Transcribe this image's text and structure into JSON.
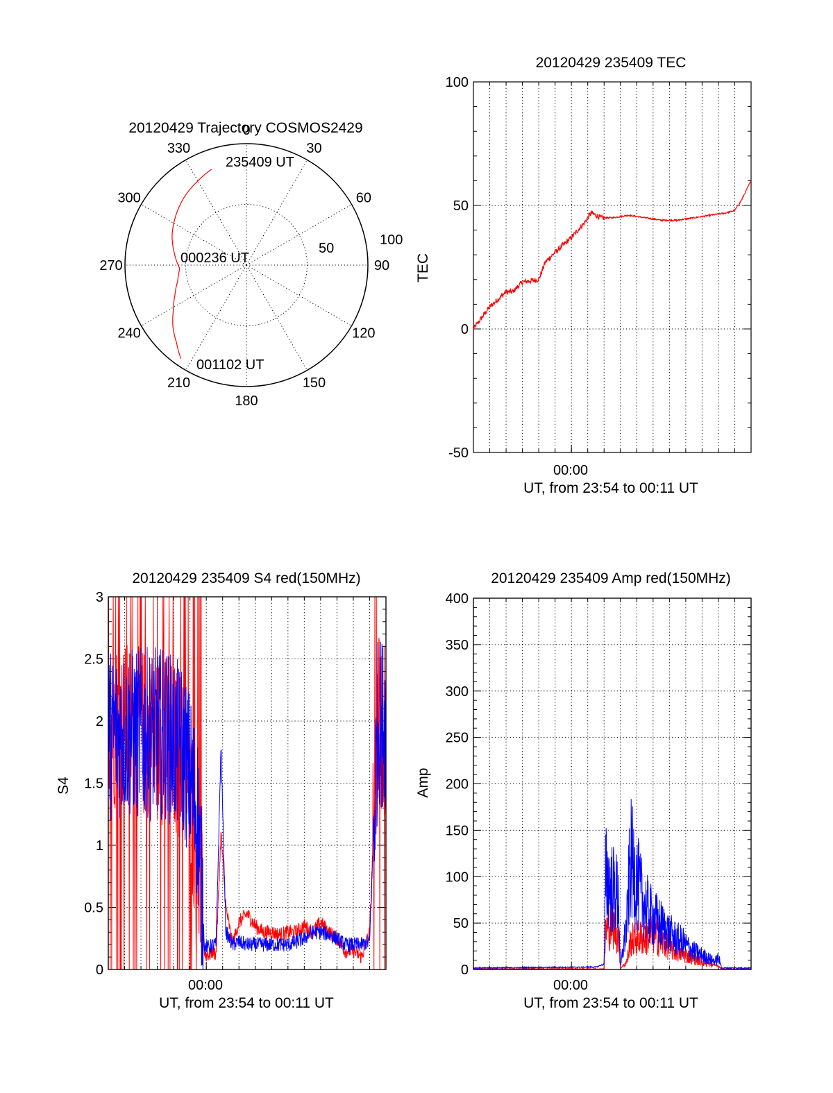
{
  "chart_data": [
    {
      "id": "trajectory",
      "type": "polar",
      "title": "20120429 Trajectory COSMOS2429",
      "azimuth_labels": [
        "0",
        "30",
        "60",
        "90",
        "120",
        "150",
        "180",
        "210",
        "240",
        "270",
        "300",
        "330"
      ],
      "radial_labels": [
        "50",
        "100"
      ],
      "elevation_max": 100,
      "series_color": "#ff0000",
      "start_label": "235409 UT",
      "mid_label": "000236 UT",
      "end_label": "001102 UT",
      "track": {
        "azimuth_deg": [
          340,
          330,
          318,
          305,
          292,
          279,
          267,
          257,
          247,
          238,
          230,
          222,
          215
        ],
        "radius": [
          84,
          80,
          76,
          71,
          66,
          60,
          55,
          58,
          64,
          71,
          79,
          86,
          94
        ]
      }
    },
    {
      "id": "tec",
      "type": "line",
      "title": "20120429 235409 TEC",
      "ylabel": "TEC",
      "xlabel": "UT, from 23:54 to 00:11 UT",
      "x_tick_label": "00:00",
      "x_range_minutes": [
        -6,
        11
      ],
      "ylim": [
        -50,
        100
      ],
      "yticks": [
        -50,
        0,
        50,
        100
      ],
      "series_color": "#ff0000",
      "series": {
        "x_minutes": [
          -6.0,
          -5.0,
          -4.0,
          -3.6,
          -3.0,
          -2.0,
          -1.6,
          -1.0,
          -0.5,
          0.0,
          0.8,
          1.2,
          1.8,
          2.5,
          3.5,
          4.5,
          5.5,
          6.5,
          7.5,
          8.5,
          9.5,
          10.0,
          10.4,
          11.0
        ],
        "tec": [
          0,
          9,
          15,
          15,
          19,
          20,
          27,
          31,
          34,
          37,
          43,
          47,
          45,
          45,
          46,
          45,
          44,
          44,
          45,
          46,
          47,
          48,
          52,
          60
        ]
      }
    },
    {
      "id": "s4",
      "type": "line",
      "title": "20120429 235409 S4 red(150MHz)",
      "ylabel": "S4",
      "xlabel": "UT, from 23:54 to 00:11 UT",
      "x_tick_label": "00:00",
      "x_range_minutes": [
        -6,
        11
      ],
      "ylim": [
        0,
        3
      ],
      "yticks": [
        "0",
        "0.5",
        "1",
        "1.5",
        "2",
        "2.5",
        "3"
      ],
      "series": [
        {
          "color": "#ff0000",
          "x_minutes": [
            -6.0,
            -4.0,
            -2.5,
            -1.4,
            -0.9,
            -0.5,
            -0.1,
            0.2,
            0.4,
            0.6,
            0.9,
            1.2,
            1.6,
            2.0,
            2.5,
            3.0,
            3.5,
            4.0,
            4.5,
            5.0,
            5.5,
            6.0,
            6.5,
            7.0,
            7.5,
            8.0,
            8.5,
            9.0,
            9.5,
            10.0,
            10.5,
            11.0
          ],
          "mean": [
            2.0,
            1.9,
            1.85,
            1.7,
            1.3,
            0.9,
            0.12,
            0.12,
            0.15,
            0.12,
            1.1,
            0.5,
            0.2,
            0.38,
            0.45,
            0.35,
            0.3,
            0.3,
            0.28,
            0.3,
            0.3,
            0.35,
            0.3,
            0.38,
            0.3,
            0.25,
            0.15,
            0.15,
            0.1,
            0.3,
            2.0,
            1.9
          ]
        },
        {
          "color": "#0000ff",
          "x_minutes": [
            -6.0,
            -4.0,
            -2.5,
            -1.4,
            -0.9,
            -0.5,
            -0.1,
            0.2,
            0.4,
            0.6,
            0.9,
            1.2,
            1.6,
            2.0,
            2.5,
            3.0,
            3.5,
            4.0,
            4.5,
            5.0,
            5.5,
            6.0,
            6.5,
            7.0,
            7.5,
            8.0,
            8.5,
            9.0,
            9.5,
            10.0,
            10.5,
            11.0
          ],
          "mean": [
            1.9,
            1.9,
            1.9,
            1.75,
            1.5,
            1.2,
            0.18,
            0.18,
            0.2,
            0.2,
            1.8,
            0.3,
            0.2,
            0.22,
            0.2,
            0.2,
            0.2,
            0.2,
            0.2,
            0.2,
            0.22,
            0.25,
            0.3,
            0.3,
            0.28,
            0.25,
            0.2,
            0.2,
            0.2,
            0.22,
            2.0,
            2.0
          ]
        }
      ]
    },
    {
      "id": "amp",
      "type": "line",
      "title": "20120429 235409 Amp red(150MHz)",
      "ylabel": "Amp",
      "xlabel": "UT, from 23:54 to 00:11 UT",
      "x_tick_label": "00:00",
      "x_range_minutes": [
        -6,
        11
      ],
      "ylim": [
        0,
        400
      ],
      "yticks": [
        0,
        50,
        100,
        150,
        200,
        250,
        300,
        350,
        400
      ],
      "series": [
        {
          "color": "#ff0000",
          "x_minutes": [
            -6.0,
            2.0,
            2.1,
            2.5,
            2.9,
            3.0,
            3.4,
            3.6,
            4.0,
            4.5,
            5.0,
            5.5,
            6.0,
            6.5,
            7.0,
            7.5,
            8.0,
            8.5,
            9.0,
            9.2,
            11.0
          ],
          "amp": [
            0,
            0,
            50,
            60,
            40,
            0,
            10,
            35,
            40,
            40,
            45,
            35,
            28,
            22,
            18,
            14,
            10,
            6,
            3,
            0,
            0
          ]
        },
        {
          "color": "#0000ff",
          "x_minutes": [
            -6.0,
            1.5,
            2.0,
            2.1,
            2.3,
            2.6,
            2.9,
            3.0,
            3.4,
            3.6,
            3.9,
            4.3,
            4.8,
            5.3,
            5.8,
            6.3,
            6.8,
            7.3,
            7.8,
            8.3,
            8.8,
            9.0,
            9.2,
            11.0
          ],
          "amp": [
            1,
            2,
            5,
            120,
            110,
            100,
            90,
            2,
            60,
            140,
            120,
            90,
            70,
            60,
            50,
            40,
            35,
            25,
            20,
            15,
            10,
            15,
            1,
            1
          ]
        }
      ]
    }
  ]
}
